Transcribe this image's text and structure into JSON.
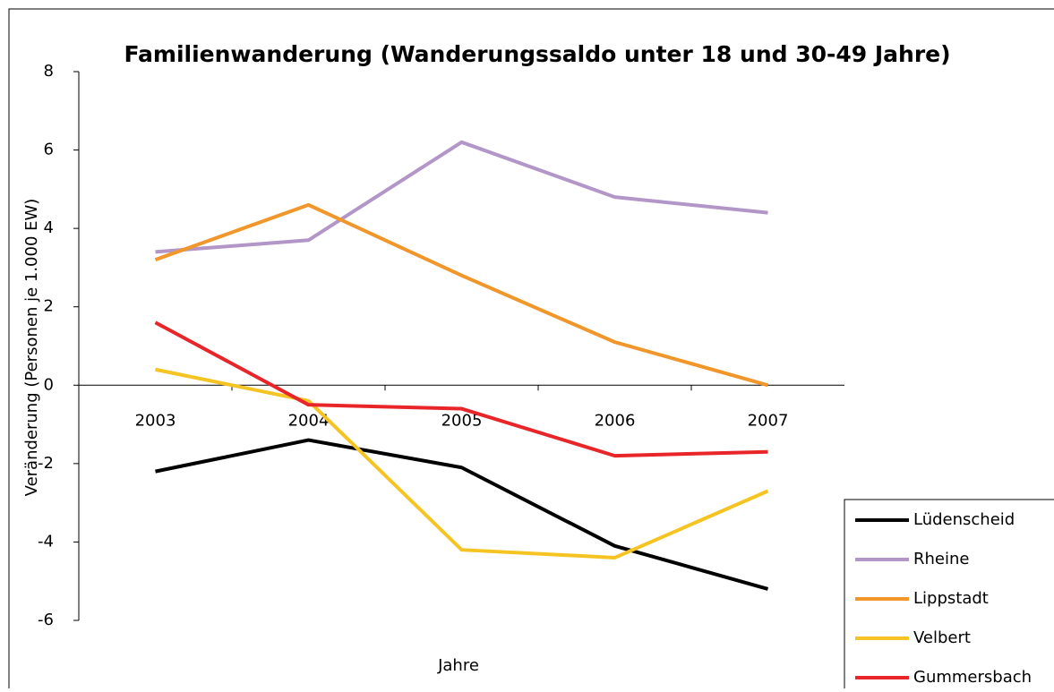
{
  "chart_data": {
    "type": "line",
    "title": "Familienwanderung (Wanderungssaldo unter 18 und 30-49 Jahre)",
    "x_label": "Jahre",
    "y_label": "Veränderung (Personen je 1.000 EW)",
    "categories": [
      "2003",
      "2004",
      "2005",
      "2006",
      "2007"
    ],
    "series": [
      {
        "name": "Lüdenscheid",
        "color": "#000000",
        "values": [
          -2.2,
          -1.4,
          -2.1,
          -4.1,
          -5.2
        ]
      },
      {
        "name": "Rheine",
        "color": "#b296c8",
        "values": [
          3.4,
          3.7,
          6.2,
          4.8,
          4.4
        ]
      },
      {
        "name": "Lippstadt",
        "color": "#f0962a",
        "values": [
          3.2,
          4.6,
          2.8,
          1.1,
          0
        ]
      },
      {
        "name": "Velbert",
        "color": "#f5c423",
        "values": [
          0.4,
          -0.4,
          -4.2,
          -4.4,
          -2.7
        ]
      },
      {
        "name": "Gummersbach",
        "color": "#e8262a",
        "values": [
          1.6,
          -0.5,
          -0.6,
          -1.8,
          -1.7
        ]
      }
    ],
    "ylim": [
      -6,
      8
    ],
    "yticks": [
      -6,
      -4,
      -2,
      0,
      2,
      4,
      6,
      8
    ],
    "grid": false,
    "legend": "bottom-right"
  }
}
